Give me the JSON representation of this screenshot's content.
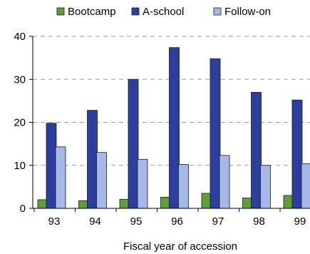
{
  "chart_data": {
    "type": "bar",
    "title": "",
    "xlabel": "Fiscal year of accession",
    "ylabel": "",
    "categories": [
      "93",
      "94",
      "95",
      "96",
      "97",
      "98",
      "99"
    ],
    "ylim": [
      0,
      40
    ],
    "yticks": [
      0,
      10,
      20,
      30,
      40
    ],
    "grid": "horizontal-dashed",
    "legend_position": "top",
    "series": [
      {
        "name": "Bootcamp",
        "color": "#5f9e3a",
        "values": [
          2.0,
          1.8,
          2.1,
          2.6,
          3.5,
          2.4,
          3.0
        ]
      },
      {
        "name": "A-school",
        "color": "#2d3f9c",
        "values": [
          19.8,
          22.8,
          30.0,
          37.4,
          34.8,
          27.0,
          25.2
        ]
      },
      {
        "name": "Follow-on",
        "color": "#a6b7ea",
        "values": [
          14.3,
          13.0,
          11.4,
          10.2,
          12.3,
          10.0,
          10.4
        ]
      }
    ]
  }
}
